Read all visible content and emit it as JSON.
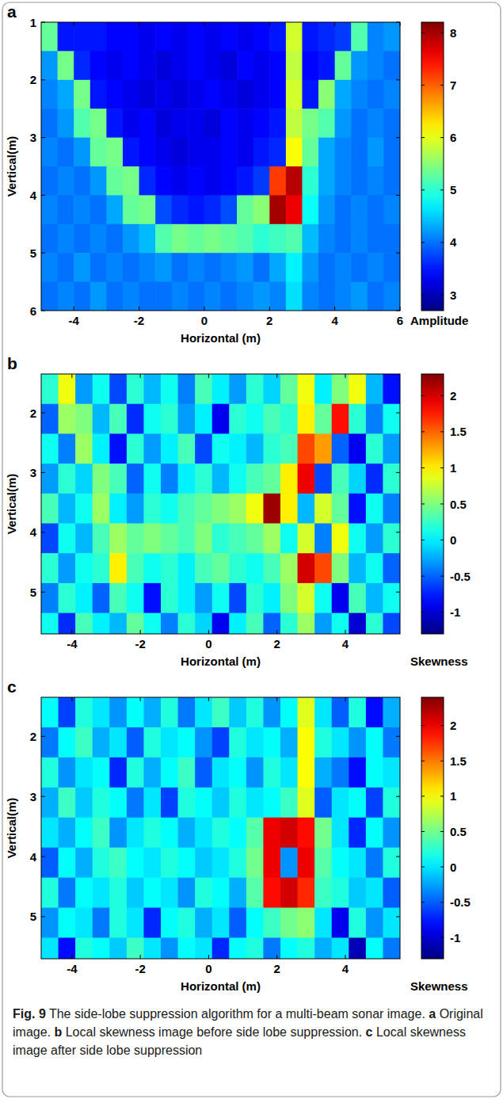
{
  "chart_data": [
    {
      "type": "heatmap",
      "panel": "a",
      "x_label": "Horizontal (m)",
      "y_label": "Vertical(m)",
      "xlim": [
        -5,
        6
      ],
      "ylim": [
        1,
        6
      ],
      "xticks": [
        -4,
        -2,
        0,
        2,
        4,
        6
      ],
      "yticks": [
        1,
        2,
        3,
        4,
        5,
        6
      ],
      "x": [
        -4.75,
        -4.25,
        -3.75,
        -3.25,
        -2.75,
        -2.25,
        -1.75,
        -1.25,
        -0.75,
        -0.25,
        0.25,
        0.75,
        1.25,
        1.75,
        2.25,
        2.75,
        3.25,
        3.75,
        4.25,
        4.75,
        5.25,
        5.75
      ],
      "y": [
        1.25,
        1.75,
        2.25,
        2.75,
        3.25,
        3.75,
        4.25,
        4.75,
        5.25,
        5.75
      ],
      "z": [
        [
          5.3,
          3.5,
          3.5,
          3.5,
          3.4,
          3.4,
          3.3,
          3.4,
          3.3,
          3.4,
          3.3,
          3.4,
          3.3,
          3.4,
          3.5,
          5.9,
          3.5,
          3.6,
          3.7,
          5.2,
          4.1,
          4.2
        ],
        [
          4.2,
          5.4,
          3.6,
          3.4,
          3.3,
          3.4,
          3.3,
          3.2,
          3.3,
          3.4,
          3.3,
          3.2,
          3.4,
          3.3,
          3.4,
          5.8,
          3.4,
          3.5,
          5.3,
          4.2,
          4.1,
          4.0
        ],
        [
          4.1,
          4.3,
          5.4,
          3.5,
          3.4,
          3.3,
          3.2,
          3.3,
          3.2,
          3.3,
          3.4,
          3.3,
          3.2,
          3.3,
          3.4,
          5.9,
          3.5,
          5.5,
          4.3,
          4.1,
          4.0,
          4.1
        ],
        [
          4.0,
          4.2,
          5.2,
          5.4,
          3.5,
          3.3,
          3.4,
          3.2,
          3.3,
          3.3,
          3.2,
          3.4,
          3.3,
          3.4,
          3.5,
          5.8,
          5.4,
          5.2,
          4.2,
          4.0,
          4.1,
          4.0
        ],
        [
          4.1,
          4.0,
          4.2,
          5.3,
          5.4,
          3.5,
          3.4,
          3.3,
          3.2,
          3.3,
          3.3,
          3.4,
          3.3,
          3.5,
          3.6,
          6.1,
          5.3,
          4.3,
          4.1,
          4.0,
          4.2,
          4.0
        ],
        [
          4.0,
          4.1,
          4.0,
          4.2,
          5.3,
          5.4,
          3.6,
          3.4,
          3.3,
          3.4,
          3.3,
          3.4,
          3.5,
          3.7,
          7.2,
          7.9,
          5.0,
          4.3,
          4.1,
          4.0,
          4.1,
          4.0
        ],
        [
          4.1,
          4.0,
          4.1,
          4.0,
          4.3,
          5.3,
          5.4,
          3.8,
          3.6,
          3.5,
          3.6,
          3.8,
          5.3,
          5.5,
          8.0,
          7.6,
          4.8,
          4.2,
          4.0,
          4.1,
          4.0,
          4.1
        ],
        [
          4.0,
          4.1,
          4.0,
          4.1,
          4.0,
          4.2,
          4.4,
          5.2,
          5.4,
          5.3,
          5.4,
          5.3,
          5.2,
          5.0,
          5.1,
          5.2,
          4.4,
          4.1,
          4.0,
          4.1,
          4.0,
          4.0
        ],
        [
          4.1,
          4.0,
          4.2,
          4.0,
          4.1,
          4.0,
          4.1,
          4.2,
          4.0,
          4.1,
          4.0,
          4.1,
          4.2,
          4.0,
          4.3,
          4.7,
          4.2,
          4.0,
          4.1,
          4.0,
          4.1,
          4.0
        ],
        [
          4.0,
          4.1,
          4.0,
          4.2,
          4.0,
          4.1,
          4.0,
          4.0,
          4.1,
          4.0,
          4.1,
          4.0,
          4.1,
          4.2,
          4.1,
          4.6,
          4.1,
          4.0,
          4.1,
          4.2,
          4.0,
          4.1
        ]
      ],
      "colorbar": {
        "label": "Amplitude",
        "range": [
          2.7,
          8.2
        ],
        "ticks": [
          3,
          4,
          5,
          6,
          7,
          8
        ]
      }
    },
    {
      "type": "heatmap",
      "panel": "b",
      "x_label": "Horizontal (m)",
      "y_label": "Vertical(m)",
      "xlim": [
        -4.9,
        5.6
      ],
      "ylim": [
        1.35,
        5.7
      ],
      "xticks": [
        -4,
        -2,
        0,
        2,
        4
      ],
      "yticks": [
        2,
        3,
        4,
        5
      ],
      "x": [
        -4.65,
        -4.15,
        -3.65,
        -3.15,
        -2.65,
        -2.15,
        -1.65,
        -1.15,
        -0.65,
        -0.15,
        0.35,
        0.85,
        1.35,
        1.85,
        2.35,
        2.85,
        3.35,
        3.85,
        4.35,
        4.85,
        5.35
      ],
      "y": [
        1.6,
        2.1,
        2.6,
        3.1,
        3.6,
        4.1,
        4.6,
        5.1,
        5.6
      ],
      "z": [
        [
          0.2,
          0.9,
          -0.3,
          0.1,
          -0.6,
          0.2,
          -0.2,
          0.1,
          -0.4,
          0.3,
          0.0,
          -0.3,
          0.2,
          -0.1,
          0.4,
          0.9,
          0.0,
          0.5,
          0.9,
          -0.2,
          -0.8
        ],
        [
          -0.5,
          0.6,
          0.5,
          -0.2,
          0.3,
          -0.7,
          0.1,
          0.2,
          -0.3,
          0.0,
          -0.9,
          0.2,
          0.1,
          0.3,
          0.2,
          1.0,
          0.4,
          1.8,
          0.2,
          -0.4,
          0.1
        ],
        [
          0.1,
          -0.4,
          0.6,
          0.0,
          -0.8,
          0.2,
          -0.3,
          0.0,
          0.3,
          -0.6,
          0.1,
          0.0,
          -0.2,
          0.2,
          0.3,
          1.6,
          1.3,
          -0.5,
          -0.9,
          0.2,
          -0.3
        ],
        [
          -0.3,
          0.2,
          -0.1,
          0.5,
          0.3,
          -0.5,
          0.1,
          -0.4,
          0.0,
          0.2,
          -0.2,
          0.1,
          0.3,
          0.4,
          1.0,
          1.9,
          -0.6,
          0.3,
          -0.1,
          -0.7,
          0.2
        ],
        [
          0.3,
          -0.2,
          0.1,
          0.6,
          0.0,
          -0.3,
          0.2,
          0.1,
          0.3,
          0.4,
          0.5,
          0.6,
          0.9,
          2.2,
          1.0,
          -0.2,
          0.8,
          0.4,
          -0.8,
          0.1,
          -0.4
        ],
        [
          -0.6,
          0.1,
          -0.2,
          0.3,
          0.6,
          0.4,
          0.5,
          0.4,
          0.3,
          0.5,
          0.2,
          0.3,
          0.4,
          0.6,
          0.1,
          0.8,
          -0.4,
          0.9,
          0.1,
          -0.3,
          0.2
        ],
        [
          0.2,
          -0.3,
          0.1,
          0.2,
          1.0,
          0.3,
          0.1,
          0.2,
          0.0,
          0.3,
          0.4,
          0.2,
          0.1,
          0.3,
          0.6,
          2.0,
          1.6,
          0.5,
          -0.2,
          0.1,
          -0.5
        ],
        [
          -0.4,
          0.2,
          0.0,
          -0.5,
          0.3,
          0.1,
          -0.8,
          0.2,
          0.0,
          -0.3,
          0.1,
          -0.6,
          0.2,
          0.0,
          0.5,
          0.8,
          0.1,
          -0.9,
          0.3,
          -0.2,
          0.1
        ],
        [
          0.1,
          -0.7,
          0.3,
          0.0,
          -0.2,
          0.4,
          0.1,
          -0.4,
          0.2,
          -0.1,
          -0.9,
          0.0,
          0.3,
          -0.5,
          0.2,
          0.6,
          -0.3,
          0.1,
          -1.0,
          0.2,
          -0.6
        ]
      ],
      "colorbar": {
        "label": "Skewness",
        "range": [
          -1.3,
          2.3
        ],
        "ticks": [
          -1,
          -0.5,
          0,
          0.5,
          1,
          1.5,
          2
        ]
      }
    },
    {
      "type": "heatmap",
      "panel": "c",
      "x_label": "Horizontal (m)",
      "y_label": "Vertical(m)",
      "xlim": [
        -4.9,
        5.6
      ],
      "ylim": [
        1.35,
        5.7
      ],
      "xticks": [
        -4,
        -2,
        0,
        2,
        4
      ],
      "yticks": [
        2,
        3,
        4,
        5
      ],
      "x": [
        -4.65,
        -4.15,
        -3.65,
        -3.15,
        -2.65,
        -2.15,
        -1.65,
        -1.15,
        -0.65,
        -0.15,
        0.35,
        0.85,
        1.35,
        1.85,
        2.35,
        2.85,
        3.35,
        3.85,
        4.35,
        4.85,
        5.35
      ],
      "y": [
        1.6,
        2.1,
        2.6,
        3.1,
        3.6,
        4.1,
        4.6,
        5.1,
        5.6
      ],
      "z": [
        [
          0.1,
          -0.6,
          0.2,
          0.0,
          -0.3,
          0.1,
          -0.2,
          0.2,
          -0.4,
          0.0,
          0.3,
          -0.1,
          0.2,
          -0.3,
          0.1,
          0.9,
          0.0,
          -0.5,
          0.2,
          -0.8,
          -0.2
        ],
        [
          -0.4,
          0.1,
          0.3,
          -0.2,
          0.0,
          -0.5,
          0.2,
          0.0,
          0.1,
          -0.3,
          -0.6,
          0.2,
          0.0,
          0.1,
          -0.2,
          1.0,
          0.2,
          0.0,
          -0.3,
          0.1,
          -0.4
        ],
        [
          0.2,
          -0.3,
          0.0,
          0.1,
          -0.7,
          0.2,
          -0.2,
          0.1,
          0.3,
          -0.5,
          0.0,
          0.1,
          -0.3,
          0.2,
          0.0,
          1.0,
          -0.2,
          -0.4,
          -0.8,
          0.1,
          0.0
        ],
        [
          -0.2,
          0.3,
          -0.1,
          0.2,
          0.1,
          -0.4,
          0.0,
          -0.6,
          0.2,
          0.1,
          -0.1,
          0.2,
          0.0,
          0.1,
          0.3,
          0.9,
          -0.5,
          0.0,
          0.1,
          -0.6,
          0.2
        ],
        [
          0.0,
          -0.2,
          0.1,
          0.3,
          -0.3,
          0.0,
          0.2,
          0.1,
          -0.2,
          0.0,
          0.2,
          0.1,
          0.4,
          2.0,
          2.1,
          1.9,
          0.5,
          0.0,
          -0.7,
          0.1,
          -0.3
        ],
        [
          -0.5,
          0.1,
          -0.2,
          0.2,
          0.3,
          0.1,
          0.0,
          0.2,
          0.1,
          -0.1,
          0.0,
          0.2,
          0.5,
          2.0,
          -0.3,
          2.0,
          0.4,
          0.1,
          0.0,
          -0.4,
          0.2
        ],
        [
          0.2,
          -0.4,
          0.1,
          0.0,
          0.2,
          -0.1,
          0.1,
          0.0,
          -0.3,
          0.2,
          0.1,
          -0.2,
          0.4,
          1.9,
          2.1,
          1.8,
          0.3,
          0.2,
          -0.1,
          0.0,
          -0.5
        ],
        [
          -0.3,
          0.1,
          0.0,
          -0.4,
          0.2,
          0.0,
          -0.7,
          0.1,
          0.2,
          -0.2,
          0.0,
          -0.5,
          0.1,
          0.3,
          0.5,
          0.6,
          0.0,
          -0.9,
          0.2,
          -0.3,
          0.0
        ],
        [
          0.0,
          -0.8,
          0.2,
          0.1,
          -0.1,
          0.3,
          0.0,
          -0.3,
          0.1,
          0.0,
          -0.7,
          0.1,
          0.2,
          -0.4,
          0.1,
          0.2,
          -0.2,
          0.0,
          -1.1,
          0.1,
          -0.4
        ]
      ],
      "colorbar": {
        "label": "Skewness",
        "range": [
          -1.3,
          2.4
        ],
        "ticks": [
          -1,
          -0.5,
          0,
          0.5,
          1,
          1.5,
          2
        ]
      }
    }
  ],
  "caption": {
    "figure": "Fig. 9",
    "text": "The side-lobe suppression algorithm for a multi-beam sonar image.",
    "parts": [
      {
        "panel": "a",
        "text": "Original image."
      },
      {
        "panel": "b",
        "text": "Local skewness image before side lobe suppression."
      },
      {
        "panel": "c",
        "text": "Local skewness image after side lobe suppression"
      }
    ]
  }
}
